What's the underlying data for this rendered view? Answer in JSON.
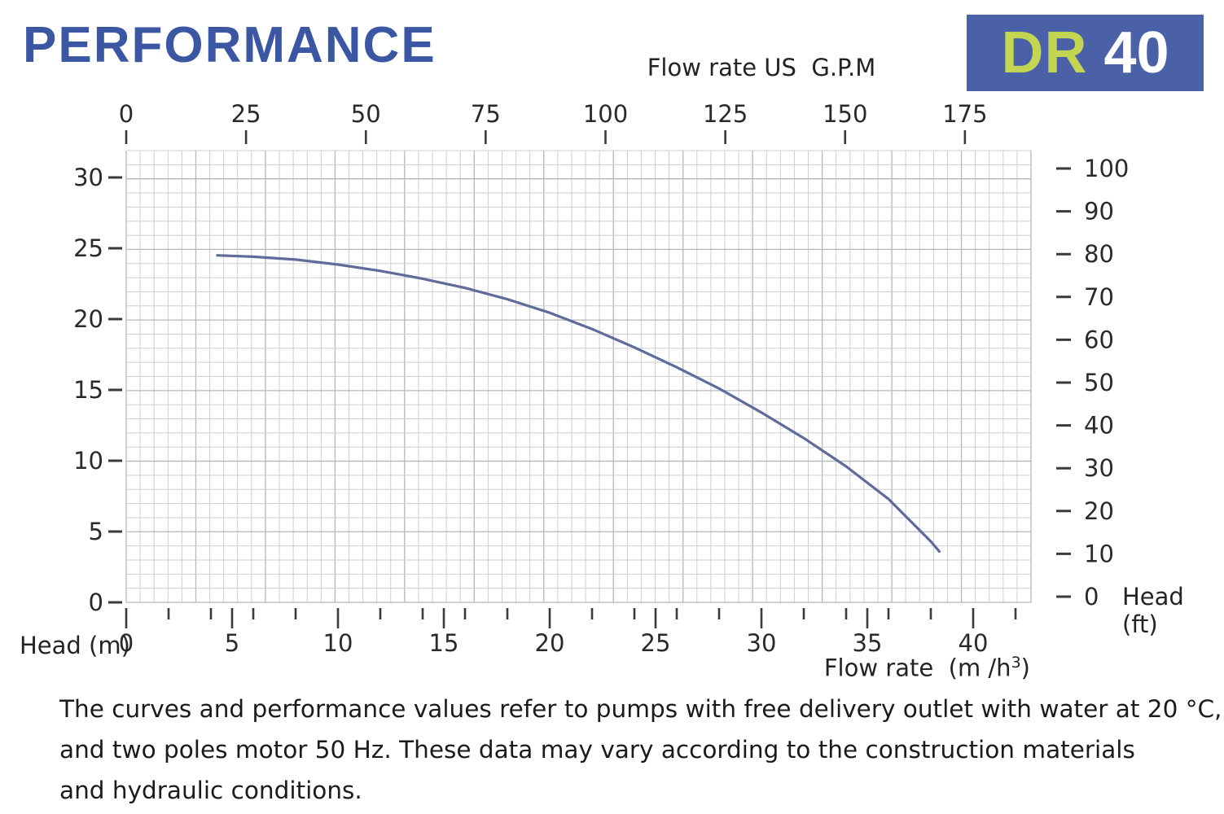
{
  "header": {
    "title": "PERFORMANCE",
    "model_badge": {
      "series": "DR",
      "size": "40"
    }
  },
  "colors": {
    "title_blue": "#3b57a3",
    "badge_bg": "#4a61a8",
    "badge_series": "#c3d551",
    "badge_size": "#ffffff",
    "curve": "#5e6b9b",
    "grid_minor": "#cdced1",
    "grid_major": "#b5b7bb",
    "tick_mark": "#3a3a3a",
    "tick_text": "#2a2a2a"
  },
  "chart_data": {
    "type": "line",
    "title": "PERFORMANCE",
    "top_axis": {
      "label": "Flow rate US  G.P.M",
      "ticks": [
        0,
        25,
        50,
        75,
        100,
        125,
        150,
        175
      ],
      "range": [
        0,
        189
      ]
    },
    "bottom_axis": {
      "label_pre": "Flow rate  (m /h",
      "label_sup": "3",
      "label_post": ")",
      "ticks": [
        0,
        5,
        10,
        15,
        20,
        25,
        30,
        35,
        40
      ],
      "minor_tick_step": 2,
      "major_tick_step": 5,
      "range": [
        0,
        42.7
      ]
    },
    "left_axis": {
      "label": "Head (m)",
      "ticks": [
        30,
        25,
        20,
        15,
        10,
        5,
        0
      ],
      "range": [
        0,
        32
      ]
    },
    "right_axis": {
      "label": "Head (ft)",
      "ticks": [
        100,
        90,
        80,
        70,
        60,
        50,
        40,
        30,
        20,
        10,
        0
      ],
      "range": [
        0,
        105
      ]
    },
    "grid": true,
    "legend": "none",
    "series": [
      {
        "name": "DR 40 head-flow curve",
        "x_unit": "m3/h",
        "y_unit": "m",
        "points": [
          [
            4.3,
            24.5
          ],
          [
            6,
            24.4
          ],
          [
            8,
            24.2
          ],
          [
            10,
            23.85
          ],
          [
            12,
            23.4
          ],
          [
            14,
            22.85
          ],
          [
            16,
            22.2
          ],
          [
            18,
            21.4
          ],
          [
            20,
            20.45
          ],
          [
            22,
            19.3
          ],
          [
            24,
            18.0
          ],
          [
            26,
            16.6
          ],
          [
            28,
            15.1
          ],
          [
            30,
            13.4
          ],
          [
            32,
            11.6
          ],
          [
            34,
            9.6
          ],
          [
            36,
            7.3
          ],
          [
            38,
            4.3
          ],
          [
            38.4,
            3.6
          ]
        ]
      }
    ],
    "footnote_lines": [
      "The curves and performance values refer to pumps with free delivery outlet with water at 20 °C,",
      "and two poles motor 50 Hz. These data may vary according to the construction materials",
      "and hydraulic conditions."
    ]
  }
}
